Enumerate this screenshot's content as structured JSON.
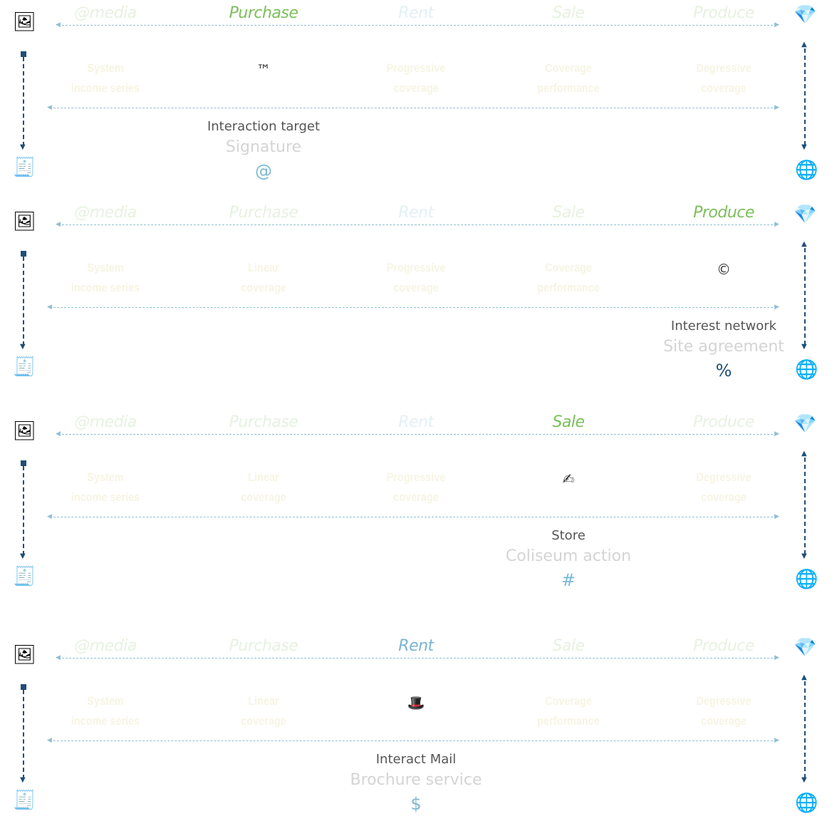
{
  "panels": [
    {
      "headers": [
        "@media",
        "Purchase",
        "Rent",
        "Sale",
        "Produce"
      ],
      "active": 1,
      "cells": [
        [
          "System",
          "income series"
        ],
        null,
        [
          "Progressive",
          "coverage"
        ],
        [
          "Coverage",
          "performance"
        ],
        [
          "Degressive",
          "coverage"
        ]
      ],
      "marker": {
        "col": 1,
        "glyph": "™",
        "name": "trademark-icon"
      },
      "caption": {
        "col": 1,
        "title": "Interaction target",
        "subtitle": "Signature",
        "symbol": "@",
        "symbol_color": "#7ab8d6"
      }
    },
    {
      "headers": [
        "@media",
        "Purchase",
        "Rent",
        "Sale",
        "Produce"
      ],
      "active": 4,
      "cells": [
        [
          "System",
          "income series"
        ],
        [
          "Linear",
          "coverage"
        ],
        [
          "Progressive",
          "coverage"
        ],
        [
          "Coverage",
          "performance"
        ],
        null
      ],
      "marker": {
        "col": 4,
        "glyph": "©",
        "name": "copyright-icon"
      },
      "caption": {
        "col": 4,
        "title": "Interest network",
        "subtitle": "Site agreement",
        "symbol": "%",
        "symbol_color": "#1f4e79"
      }
    },
    {
      "headers": [
        "@media",
        "Purchase",
        "Rent",
        "Sale",
        "Produce"
      ],
      "active": 3,
      "cells": [
        [
          "System",
          "income series"
        ],
        [
          "Linear",
          "coverage"
        ],
        [
          "Progressive",
          "coverage"
        ],
        null,
        [
          "Degressive",
          "coverage"
        ]
      ],
      "marker": {
        "col": 3,
        "glyph": "✍",
        "name": "writing-hand-icon"
      },
      "caption": {
        "col": 3,
        "title": "Store",
        "subtitle": "Coliseum action",
        "symbol": "#",
        "symbol_color": "#7ab8d6"
      }
    },
    {
      "headers": [
        "@media",
        "Purchase",
        "Rent",
        "Sale",
        "Produce"
      ],
      "active": 2,
      "cells": [
        [
          "System",
          "income series"
        ],
        [
          "Linear",
          "coverage"
        ],
        null,
        [
          "Coverage",
          "performance"
        ],
        [
          "Degressive",
          "coverage"
        ]
      ],
      "marker": {
        "col": 2,
        "glyph": "🎩",
        "name": "top-hat-icon"
      },
      "caption": {
        "col": 2,
        "title": "Interact Mail",
        "subtitle": "Brochure service",
        "symbol": "$",
        "symbol_color": "#7ab8d6"
      }
    }
  ],
  "icons": {
    "left_top": "framed-picture-icon",
    "left_bottom": "receipt-icon",
    "right_top": "gem-icon",
    "right_bottom": "globe-icon"
  },
  "colors": {
    "accent_green": "#7cbf5a",
    "accent_blue": "#78b5d3",
    "arrow_navy": "#1f4e79",
    "dashed_line": "#8fbfd6"
  }
}
